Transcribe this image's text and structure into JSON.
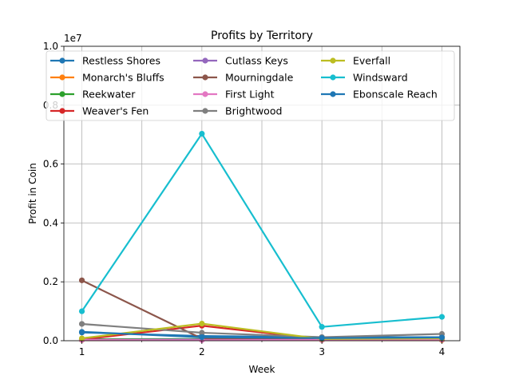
{
  "chart_data": {
    "type": "line",
    "title": "Profits by Territory",
    "xlabel": "Week",
    "ylabel": "Profit in Coin",
    "offset_label": "1e7",
    "x": [
      1,
      2,
      3,
      4
    ],
    "x_ticks": [
      "1",
      "2",
      "3",
      "4"
    ],
    "xlim": [
      0.85,
      4.15
    ],
    "ylim": [
      0,
      1.0
    ],
    "y_ticks": [
      "0.0",
      "0.2",
      "0.4",
      "0.6",
      "0.8",
      "1.0"
    ],
    "y_tick_values": [
      0,
      0.2,
      0.4,
      0.6,
      0.8,
      1.0
    ],
    "grid": true,
    "legend_position": "top",
    "series": [
      {
        "name": "Restless Shores",
        "color": "#1f77b4",
        "values": [
          0.028,
          0.016,
          0.012,
          0.012
        ]
      },
      {
        "name": "Monarch's Bluffs",
        "color": "#ff7f0e",
        "values": [
          0.002,
          0.003,
          0.002,
          0.002
        ]
      },
      {
        "name": "Reekwater",
        "color": "#2ca02c",
        "values": [
          0.005,
          0.006,
          0.004,
          0.004
        ]
      },
      {
        "name": "Weaver's Fen",
        "color": "#d62728",
        "values": [
          0.004,
          0.051,
          0.005,
          0.006
        ]
      },
      {
        "name": "Cutlass Keys",
        "color": "#9467bd",
        "values": [
          0.003,
          0.004,
          0.003,
          0.004
        ]
      },
      {
        "name": "Mourningdale",
        "color": "#8c564b",
        "values": [
          0.205,
          0.007,
          0.006,
          0.006
        ]
      },
      {
        "name": "First Light",
        "color": "#e377c2",
        "values": [
          0.003,
          0.002,
          0.003,
          0.004
        ]
      },
      {
        "name": "Brightwood",
        "color": "#7f7f7f",
        "values": [
          0.057,
          0.027,
          0.012,
          0.023
        ]
      },
      {
        "name": "Everfall",
        "color": "#bcbd22",
        "values": [
          0.008,
          0.058,
          0.006,
          0.008
        ]
      },
      {
        "name": "Windsward",
        "color": "#17becf",
        "values": [
          0.1,
          0.703,
          0.047,
          0.081
        ]
      },
      {
        "name": "Ebonscale Reach",
        "color": "#1f77b4",
        "values": [
          0.03,
          0.012,
          0.009,
          0.011
        ]
      }
    ]
  }
}
